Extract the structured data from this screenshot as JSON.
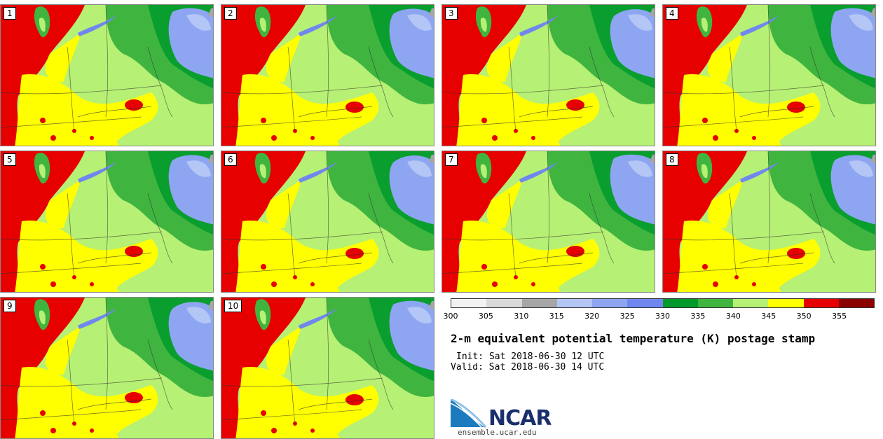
{
  "panels": [
    {
      "label": "1"
    },
    {
      "label": "2"
    },
    {
      "label": "3"
    },
    {
      "label": "4"
    },
    {
      "label": "5"
    },
    {
      "label": "6"
    },
    {
      "label": "7"
    },
    {
      "label": "8"
    },
    {
      "label": "9"
    },
    {
      "label": "10"
    }
  ],
  "legend": {
    "colors": [
      "#f2f2f2",
      "#d9d9d9",
      "#a6a6a6",
      "#b3c6f5",
      "#8ea6f2",
      "#6f87ef",
      "#009a2b",
      "#3fb540",
      "#b6f074",
      "#ffff00",
      "#e60000",
      "#8b0000"
    ],
    "ticks": [
      "300",
      "305",
      "310",
      "315",
      "320",
      "325",
      "330",
      "335",
      "340",
      "345",
      "350",
      "355"
    ]
  },
  "title": "2-m equivalent potential temperature (K) postage stamp",
  "init": "Init: Sat 2018-06-30 12 UTC",
  "valid": "Valid: Sat 2018-06-30 14 UTC",
  "logo": {
    "text": "NCAR",
    "url": "ensemble.ucar.edu"
  }
}
